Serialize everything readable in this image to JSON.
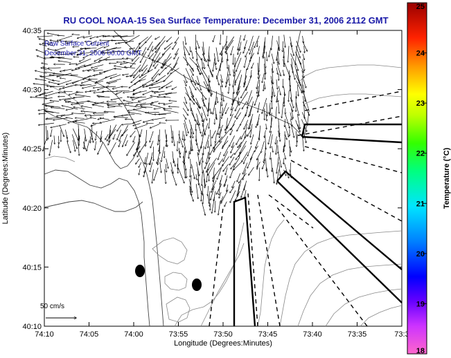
{
  "title": "RU COOL  NOAA-15  Sea Surface Temperature:  December 31, 2006 2112 GMT",
  "legend_lines": [
    "Raw Surface Current",
    "December 31, 2006 00:00 GMT"
  ],
  "scale_label": "50 cm/s",
  "chart_data": {
    "type": "map",
    "x_axis": {
      "label": "Longitude (Degrees:Minutes)",
      "ticks": [
        "74:10",
        "74:05",
        "74:00",
        "73:55",
        "73:50",
        "73:45",
        "73:40",
        "73:35",
        "73:3"
      ]
    },
    "y_axis": {
      "label": "Latitude (Degrees:Minutes)",
      "ticks": [
        "40:35",
        "40:30",
        "40:25",
        "40:20",
        "40:15",
        "40:10"
      ]
    },
    "colorbar": {
      "label": "Temperature (°C)",
      "min": 18,
      "max": 25,
      "ticks": [
        "25",
        "24",
        "23",
        "22",
        "21",
        "20",
        "19",
        "18"
      ],
      "colors": [
        "#ff66cc",
        "#9900ff",
        "#0000ff",
        "#0099ff",
        "#00ffff",
        "#00ff66",
        "#66ff00",
        "#ffff00",
        "#ff9900",
        "#ff0000",
        "#990000"
      ]
    }
  }
}
